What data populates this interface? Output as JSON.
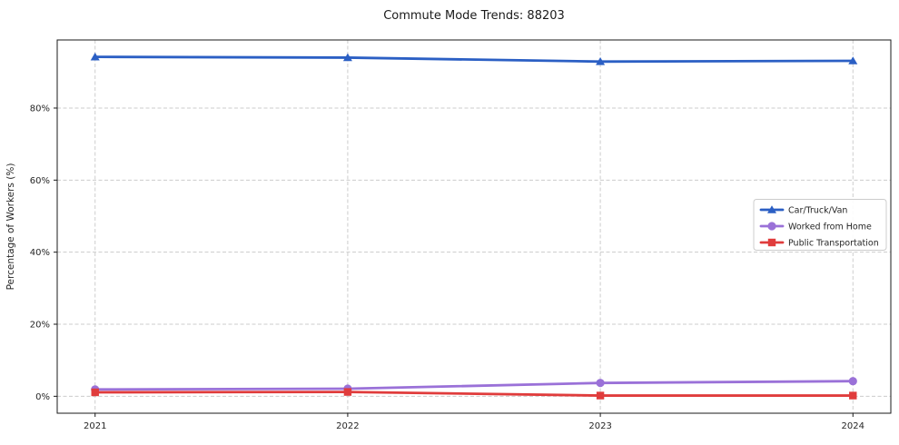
{
  "chart_data": {
    "type": "line",
    "title": "Commute Mode Trends: 88203",
    "xlabel": "",
    "ylabel": "Percentage of Workers (%)",
    "x": [
      2021,
      2022,
      2023,
      2024
    ],
    "xticklabels": [
      "2021",
      "2022",
      "2023",
      "2024"
    ],
    "yticks": [
      0,
      20,
      40,
      60,
      80
    ],
    "yticklabels": [
      "0%",
      "20%",
      "40%",
      "60%",
      "80%"
    ],
    "xlim": [
      2020.85,
      2024.15
    ],
    "ylim": [
      -4.7,
      98.9
    ],
    "grid": true,
    "grid_style": "dashed",
    "legend_position": "center-right",
    "series": [
      {
        "name": "Car/Truck/Van",
        "color": "#2b5fc4",
        "marker": "triangle",
        "values": [
          94.2,
          94.0,
          92.9,
          93.1
        ]
      },
      {
        "name": "Worked from Home",
        "color": "#9a71d8",
        "marker": "circle",
        "values": [
          1.9,
          2.1,
          3.7,
          4.2
        ]
      },
      {
        "name": "Public Transportation",
        "color": "#e03c3c",
        "marker": "square",
        "values": [
          1.1,
          1.2,
          0.2,
          0.2
        ]
      }
    ]
  }
}
